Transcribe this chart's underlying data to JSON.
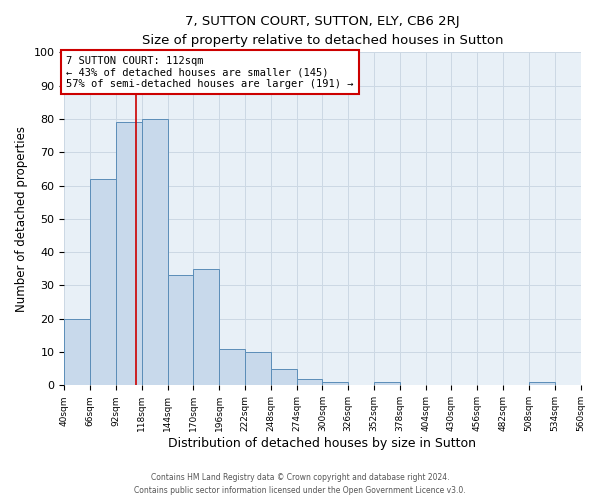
{
  "title": "7, SUTTON COURT, SUTTON, ELY, CB6 2RJ",
  "subtitle": "Size of property relative to detached houses in Sutton",
  "xlabel": "Distribution of detached houses by size in Sutton",
  "ylabel": "Number of detached properties",
  "bin_edges": [
    40,
    66,
    92,
    118,
    144,
    170,
    196,
    222,
    248,
    274,
    300,
    326,
    352,
    378,
    404,
    430,
    456,
    482,
    508,
    534,
    560
  ],
  "bar_heights": [
    20,
    62,
    79,
    80,
    33,
    35,
    11,
    10,
    5,
    2,
    1,
    0,
    1,
    0,
    0,
    0,
    0,
    0,
    1,
    0
  ],
  "bar_color": "#c8d9eb",
  "bar_edge_color": "#5b8db8",
  "ylim": [
    0,
    100
  ],
  "vline_x": 112,
  "vline_color": "#cc0000",
  "annotation_title": "7 SUTTON COURT: 112sqm",
  "annotation_line1": "← 43% of detached houses are smaller (145)",
  "annotation_line2": "57% of semi-detached houses are larger (191) →",
  "annotation_box_color": "#cc0000",
  "tick_labels": [
    "40sqm",
    "66sqm",
    "92sqm",
    "118sqm",
    "144sqm",
    "170sqm",
    "196sqm",
    "222sqm",
    "248sqm",
    "274sqm",
    "300sqm",
    "326sqm",
    "352sqm",
    "378sqm",
    "404sqm",
    "430sqm",
    "456sqm",
    "482sqm",
    "508sqm",
    "534sqm",
    "560sqm"
  ],
  "footer_line1": "Contains HM Land Registry data © Crown copyright and database right 2024.",
  "footer_line2": "Contains public sector information licensed under the Open Government Licence v3.0.",
  "grid_color": "#ccd8e4",
  "background_color": "#e8f0f7",
  "yticks": [
    0,
    10,
    20,
    30,
    40,
    50,
    60,
    70,
    80,
    90,
    100
  ]
}
